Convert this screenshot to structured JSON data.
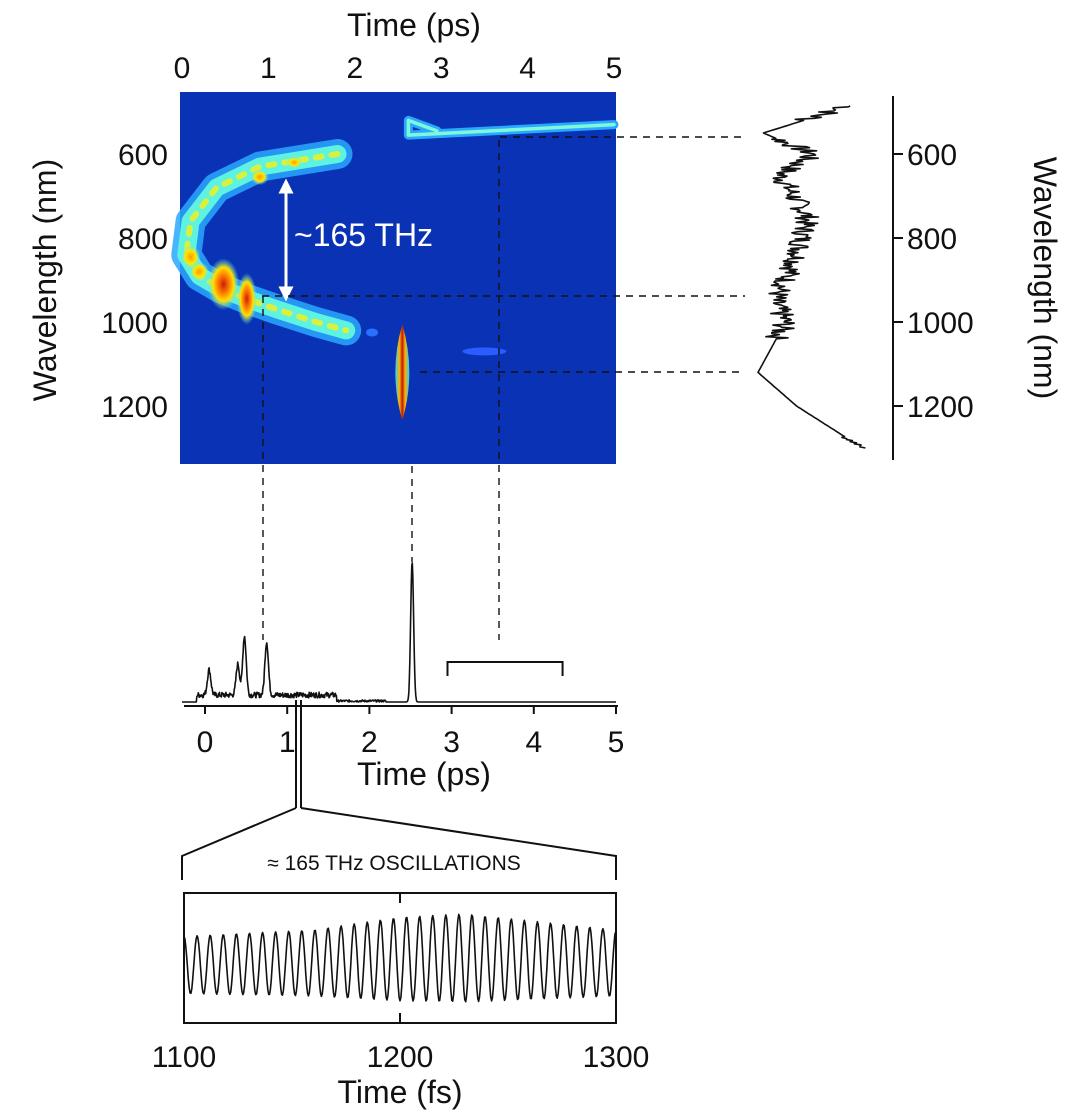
{
  "chart_data": [
    {
      "id": "spectrogram",
      "type": "heatmap",
      "title": "",
      "xlabel": "Time (ps)",
      "ylabel": "Wavelength (nm)",
      "xlim": [
        0,
        5
      ],
      "ylim": [
        1300,
        480
      ],
      "x_ticks": [
        0,
        1,
        2,
        3,
        4,
        5
      ],
      "y_ticks": [
        600,
        800,
        1000,
        1200
      ],
      "colormap": "jet",
      "background_color": "#0a32b4",
      "annotation": "~165 THz",
      "features": [
        {
          "name": "spectral arc",
          "points": [
            [
              1.8,
              600
            ],
            [
              0.9,
              630
            ],
            [
              0.4,
              680
            ],
            [
              0.1,
              760
            ],
            [
              0.05,
              840
            ],
            [
              0.2,
              890
            ],
            [
              0.45,
              920
            ],
            [
              0.75,
              945
            ],
            [
              1.1,
              970
            ],
            [
              1.55,
              1000
            ],
            [
              1.9,
              1020
            ]
          ]
        },
        {
          "name": "soliton",
          "time": 2.55,
          "wavelength": 1120
        },
        {
          "name": "dispersive wave",
          "points": [
            [
              2.62,
              540
            ],
            [
              2.8,
              550
            ],
            [
              3.5,
              548
            ],
            [
              5.0,
              530
            ]
          ]
        }
      ]
    },
    {
      "id": "spectrum",
      "type": "line",
      "title": "",
      "ylabel": "Wavelength (nm)",
      "ylim": [
        1300,
        480
      ],
      "y_ticks": [
        600,
        800,
        1000,
        1200
      ],
      "description_points": [
        [
          480,
          0.9
        ],
        [
          550,
          0.05
        ],
        [
          600,
          0.5
        ],
        [
          650,
          0.2
        ],
        [
          750,
          0.45
        ],
        [
          850,
          0.35
        ],
        [
          950,
          0.15
        ],
        [
          1000,
          0.25
        ],
        [
          1120,
          0.0
        ],
        [
          1200,
          0.35
        ],
        [
          1300,
          0.95
        ]
      ]
    },
    {
      "id": "temporal",
      "type": "line",
      "title": "",
      "xlabel": "Time (ps)",
      "xlim": [
        -0.3,
        5
      ],
      "x_ticks": [
        0,
        1,
        2,
        3,
        4,
        5
      ],
      "peaks": [
        {
          "time": 0.05,
          "height": 0.18
        },
        {
          "time": 0.4,
          "height": 0.22
        },
        {
          "time": 0.48,
          "height": 0.42
        },
        {
          "time": 0.75,
          "height": 0.38
        },
        {
          "time": 2.52,
          "height": 1.0
        }
      ],
      "bracket": [
        2.95,
        4.35
      ]
    },
    {
      "id": "oscillations",
      "type": "line",
      "title": "≈ 165 THz OSCILLATIONS",
      "xlabel": "Time (fs)",
      "xlim": [
        1100,
        1300
      ],
      "x_ticks": [
        1100,
        1200,
        1300
      ],
      "frequency_thz": 165,
      "amplitude_envelope": [
        [
          1100,
          0.65
        ],
        [
          1160,
          0.75
        ],
        [
          1200,
          0.95
        ],
        [
          1230,
          1.0
        ],
        [
          1300,
          0.75
        ]
      ]
    }
  ]
}
